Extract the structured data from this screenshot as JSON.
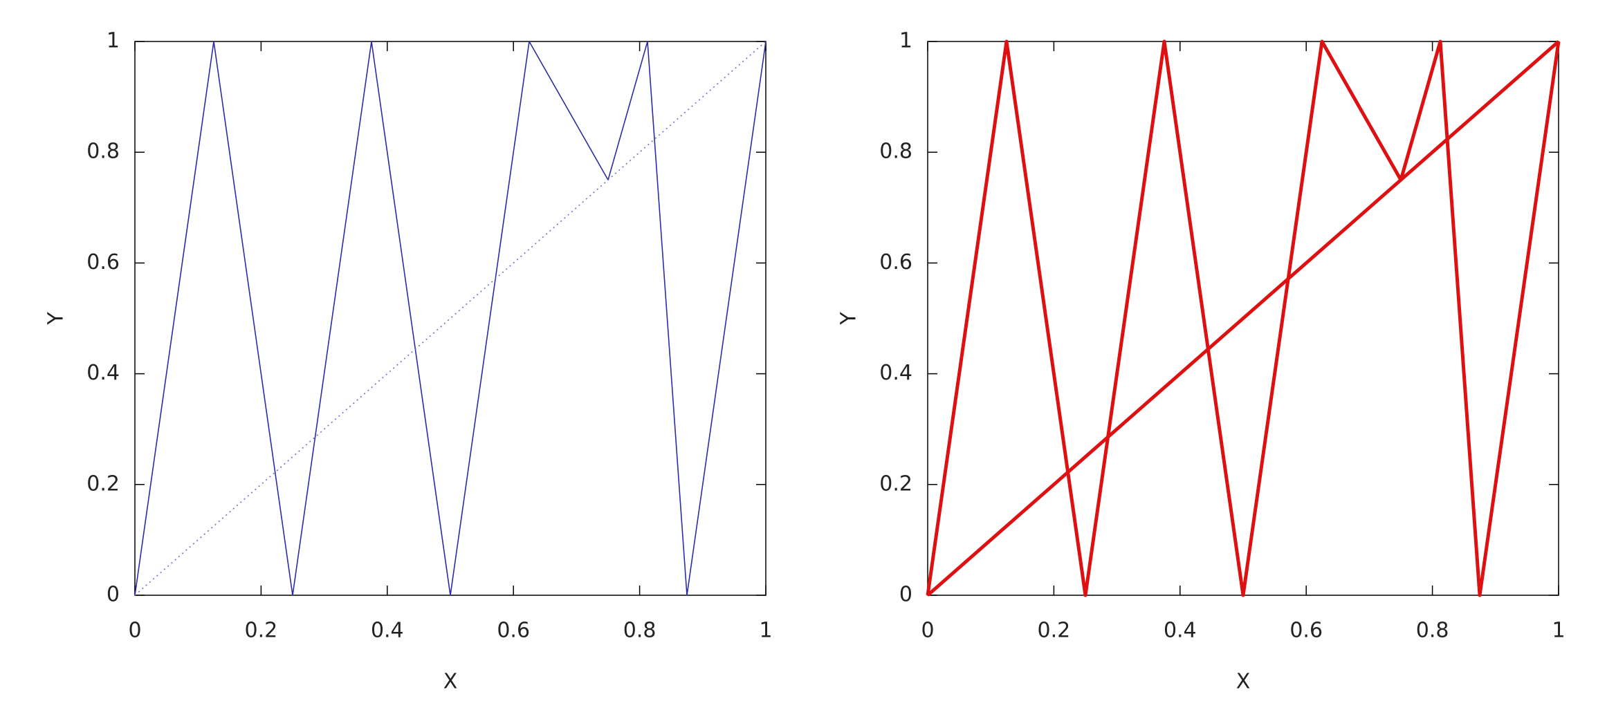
{
  "chart_data": [
    {
      "type": "line",
      "xlabel": "X",
      "ylabel": "Y",
      "xlim": [
        0,
        1
      ],
      "ylim": [
        0,
        1
      ],
      "xticks": [
        0,
        0.2,
        0.4,
        0.6,
        0.8,
        1
      ],
      "yticks": [
        0,
        0.2,
        0.4,
        0.6,
        0.8,
        1
      ],
      "series": [
        {
          "color": "#2b2ba8",
          "style": "solid",
          "linewidth": 1.6,
          "x": [
            0,
            0.125,
            0.25,
            0.375,
            0.5,
            0.625,
            0.75,
            0.8125,
            0.875,
            1
          ],
          "values": [
            0,
            1,
            0,
            1,
            0,
            1,
            0.75,
            1,
            0,
            1
          ]
        },
        {
          "color": "#6a6ad0",
          "style": "dotted",
          "linewidth": 1.6,
          "x": [
            0,
            1
          ],
          "values": [
            0,
            1
          ]
        }
      ]
    },
    {
      "type": "line",
      "xlabel": "X",
      "ylabel": "Y",
      "xlim": [
        0,
        1
      ],
      "ylim": [
        0,
        1
      ],
      "xticks": [
        0,
        0.2,
        0.4,
        0.6,
        0.8,
        1
      ],
      "yticks": [
        0,
        0.2,
        0.4,
        0.6,
        0.8,
        1
      ],
      "series": [
        {
          "color": "#dd1111",
          "style": "solid",
          "linewidth": 5,
          "x": [
            0,
            0.125,
            0.25,
            0.375,
            0.5,
            0.625,
            0.75,
            0.8125,
            0.875,
            1
          ],
          "values": [
            0,
            1,
            0,
            1,
            0,
            1,
            0.75,
            1,
            0,
            1
          ]
        },
        {
          "color": "#dd1111",
          "style": "solid",
          "linewidth": 5,
          "x": [
            0,
            1
          ],
          "values": [
            0,
            1
          ]
        }
      ]
    }
  ]
}
